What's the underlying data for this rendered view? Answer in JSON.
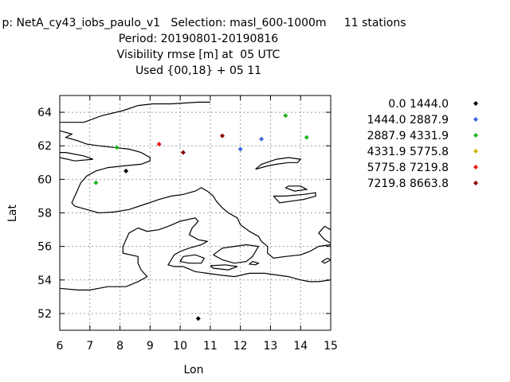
{
  "title": {
    "line1": "p: NetA_cy43_iobs_paulo_v1   Selection: masl_600-1000m     11 stations",
    "line2": "Period: 20190801-20190816",
    "line3": "Visibility rmse [m] at  05 UTC",
    "line4": "Used {00,18} + 05 11"
  },
  "chart_data": {
    "type": "scatter",
    "title": "Visibility rmse [m] at  05 UTC",
    "xlabel": "Lon",
    "ylabel": "Lat",
    "xlim": [
      6,
      15
    ],
    "ylim": [
      51,
      65
    ],
    "xticks": [
      "6",
      "7",
      "8",
      "9",
      "10",
      "11",
      "12",
      "13",
      "14",
      "15"
    ],
    "yticks": [
      "52",
      "54",
      "56",
      "58",
      "60",
      "62",
      "64"
    ],
    "grid": true,
    "legend_position": "right",
    "series": [
      {
        "name": "0.0 1444.0",
        "color": "#000000",
        "points": [
          [
            8.2,
            60.5
          ],
          [
            10.6,
            51.7
          ]
        ]
      },
      {
        "name": "1444.0 2887.9",
        "color": "#3c64dc",
        "points": [
          [
            12.0,
            61.8
          ],
          [
            12.7,
            62.4
          ]
        ]
      },
      {
        "name": "2887.9 4331.9",
        "color": "#1eb41e",
        "points": [
          [
            7.2,
            59.8
          ],
          [
            7.9,
            61.9
          ],
          [
            13.5,
            63.8
          ],
          [
            14.2,
            62.5
          ]
        ]
      },
      {
        "name": "4331.9 5775.8",
        "color": "#c8b400",
        "points": []
      },
      {
        "name": "5775.8 7219.8",
        "color": "#e61414",
        "points": [
          [
            9.3,
            62.1
          ]
        ]
      },
      {
        "name": "7219.8 8663.8",
        "color": "#8c0000",
        "points": [
          [
            10.1,
            61.6
          ],
          [
            11.4,
            62.6
          ]
        ]
      }
    ]
  },
  "map": {
    "coastlines": [
      [
        [
          6.0,
          62.9
        ],
        [
          6.4,
          62.7
        ],
        [
          6.2,
          62.5
        ],
        [
          6.6,
          62.3
        ],
        [
          6.9,
          62.1
        ],
        [
          7.3,
          62.0
        ],
        [
          7.8,
          61.9
        ],
        [
          8.3,
          61.8
        ],
        [
          8.7,
          61.6
        ],
        [
          9.0,
          61.3
        ],
        [
          9.0,
          61.1
        ],
        [
          8.7,
          60.9
        ],
        [
          8.1,
          60.8
        ],
        [
          7.6,
          60.7
        ],
        [
          7.2,
          60.5
        ],
        [
          6.9,
          60.2
        ],
        [
          6.7,
          59.8
        ],
        [
          6.6,
          59.4
        ],
        [
          6.5,
          59.0
        ],
        [
          6.4,
          58.6
        ],
        [
          6.5,
          58.4
        ],
        [
          6.9,
          58.2
        ],
        [
          7.3,
          58.0
        ],
        [
          7.8,
          58.05
        ],
        [
          8.3,
          58.2
        ],
        [
          8.8,
          58.5
        ],
        [
          9.3,
          58.8
        ],
        [
          9.7,
          59.0
        ],
        [
          10.1,
          59.1
        ],
        [
          10.5,
          59.3
        ],
        [
          10.7,
          59.5
        ],
        [
          10.9,
          59.3
        ],
        [
          11.1,
          59.0
        ],
        [
          11.2,
          58.7
        ],
        [
          11.4,
          58.3
        ],
        [
          11.6,
          58.0
        ],
        [
          11.9,
          57.7
        ],
        [
          12.0,
          57.3
        ],
        [
          12.3,
          56.9
        ],
        [
          12.6,
          56.6
        ],
        [
          12.7,
          56.3
        ],
        [
          12.9,
          56.0
        ],
        [
          12.9,
          55.6
        ],
        [
          13.1,
          55.3
        ],
        [
          13.5,
          55.4
        ],
        [
          14.0,
          55.5
        ],
        [
          14.3,
          55.7
        ],
        [
          14.6,
          56.0
        ],
        [
          15.0,
          56.1
        ]
      ],
      [
        [
          8.6,
          57.1
        ],
        [
          8.9,
          56.9
        ],
        [
          9.3,
          57.0
        ],
        [
          9.6,
          57.2
        ],
        [
          10.0,
          57.5
        ],
        [
          10.5,
          57.7
        ],
        [
          10.6,
          57.5
        ],
        [
          10.4,
          57.1
        ],
        [
          10.3,
          56.7
        ],
        [
          10.6,
          56.4
        ],
        [
          10.9,
          56.3
        ],
        [
          10.7,
          56.1
        ],
        [
          10.3,
          55.9
        ],
        [
          10.0,
          55.7
        ],
        [
          9.8,
          55.5
        ],
        [
          9.7,
          55.2
        ],
        [
          9.6,
          54.9
        ],
        [
          9.8,
          54.8
        ],
        [
          10.1,
          54.8
        ]
      ],
      [
        [
          8.6,
          57.1
        ],
        [
          8.3,
          56.8
        ],
        [
          8.2,
          56.4
        ],
        [
          8.1,
          56.0
        ],
        [
          8.1,
          55.6
        ],
        [
          8.6,
          55.4
        ],
        [
          8.6,
          55.0
        ],
        [
          8.7,
          54.6
        ],
        [
          8.9,
          54.2
        ],
        [
          8.6,
          53.9
        ],
        [
          8.2,
          53.6
        ],
        [
          7.6,
          53.6
        ],
        [
          7.0,
          53.4
        ],
        [
          6.6,
          53.4
        ],
        [
          6.0,
          53.5
        ]
      ],
      [
        [
          10.1,
          54.8
        ],
        [
          10.5,
          54.5
        ],
        [
          10.9,
          54.4
        ],
        [
          11.3,
          54.3
        ],
        [
          11.8,
          54.2
        ],
        [
          12.3,
          54.4
        ],
        [
          12.8,
          54.4
        ],
        [
          13.2,
          54.3
        ],
        [
          13.6,
          54.2
        ],
        [
          14.0,
          54.0
        ],
        [
          14.3,
          53.9
        ],
        [
          14.6,
          53.9
        ],
        [
          15.0,
          54.0
        ]
      ],
      [
        [
          10.1,
          55.4
        ],
        [
          10.5,
          55.5
        ],
        [
          10.8,
          55.3
        ],
        [
          10.7,
          55.0
        ],
        [
          10.3,
          55.0
        ],
        [
          10.0,
          55.1
        ],
        [
          10.1,
          55.4
        ]
      ],
      [
        [
          11.1,
          55.5
        ],
        [
          11.4,
          55.9
        ],
        [
          11.8,
          56.0
        ],
        [
          12.2,
          56.1
        ],
        [
          12.6,
          56.0
        ],
        [
          12.5,
          55.7
        ],
        [
          12.4,
          55.4
        ],
        [
          12.2,
          55.1
        ],
        [
          11.8,
          55.0
        ],
        [
          11.4,
          55.2
        ],
        [
          11.1,
          55.5
        ]
      ],
      [
        [
          11.0,
          54.85
        ],
        [
          11.5,
          54.9
        ],
        [
          11.9,
          54.8
        ],
        [
          11.6,
          54.6
        ],
        [
          11.1,
          54.7
        ],
        [
          11.0,
          54.85
        ]
      ],
      [
        [
          12.4,
          55.1
        ],
        [
          12.6,
          55.0
        ],
        [
          12.5,
          54.9
        ],
        [
          12.3,
          54.95
        ],
        [
          12.4,
          55.1
        ]
      ],
      [
        [
          14.7,
          55.1
        ],
        [
          14.9,
          55.3
        ],
        [
          15.0,
          55.2
        ],
        [
          14.8,
          55.0
        ],
        [
          14.7,
          55.1
        ]
      ],
      [
        [
          6.0,
          61.3
        ],
        [
          6.5,
          61.1
        ],
        [
          7.1,
          61.2
        ],
        [
          6.8,
          61.4
        ],
        [
          6.2,
          61.6
        ],
        [
          6.0,
          61.6
        ]
      ],
      [
        [
          6.0,
          63.4
        ],
        [
          6.8,
          63.4
        ],
        [
          7.4,
          63.8
        ],
        [
          8.1,
          64.1
        ],
        [
          8.6,
          64.4
        ],
        [
          9.1,
          64.5
        ],
        [
          9.7,
          64.5
        ],
        [
          10.6,
          64.6
        ],
        [
          11.0,
          64.6
        ]
      ],
      [
        [
          12.5,
          60.6
        ],
        [
          12.7,
          60.9
        ],
        [
          13.2,
          61.2
        ],
        [
          13.6,
          61.3
        ],
        [
          14.0,
          61.2
        ],
        [
          13.9,
          61.0
        ],
        [
          13.6,
          61.0
        ],
        [
          13.2,
          60.9
        ],
        [
          12.9,
          60.8
        ],
        [
          12.5,
          60.6
        ]
      ],
      [
        [
          13.1,
          59.0
        ],
        [
          13.5,
          59.0
        ],
        [
          14.1,
          59.1
        ],
        [
          14.5,
          59.2
        ],
        [
          14.5,
          59.0
        ],
        [
          14.1,
          58.8
        ],
        [
          13.7,
          58.7
        ],
        [
          13.3,
          58.6
        ],
        [
          13.1,
          59.0
        ]
      ],
      [
        [
          13.5,
          59.5
        ],
        [
          13.8,
          59.3
        ],
        [
          14.2,
          59.4
        ],
        [
          14.0,
          59.6
        ],
        [
          13.6,
          59.6
        ],
        [
          13.5,
          59.5
        ]
      ],
      [
        [
          15.0,
          57.0
        ],
        [
          14.8,
          57.2
        ],
        [
          14.6,
          56.8
        ],
        [
          14.8,
          56.4
        ],
        [
          15.0,
          56.2
        ]
      ]
    ]
  }
}
